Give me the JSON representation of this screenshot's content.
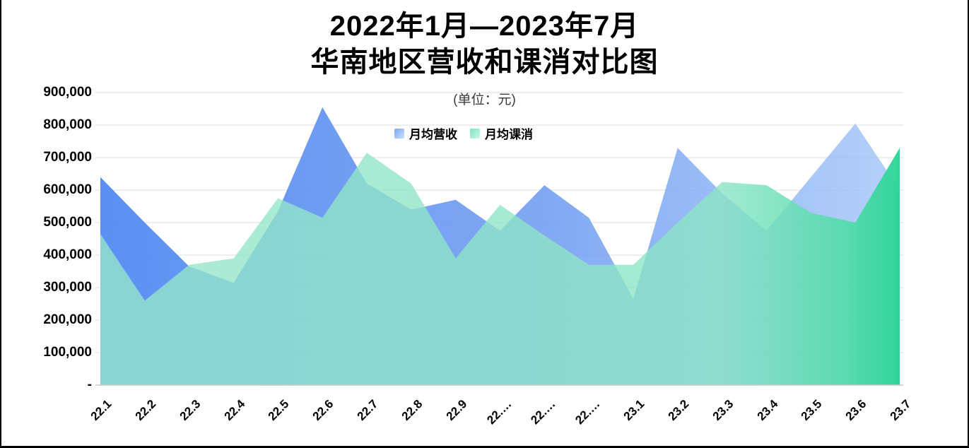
{
  "title": {
    "line1": "2022年1月—2023年7月",
    "line2": "华南地区营收和课消对比图"
  },
  "subtitle": "(单位：元)",
  "legend": [
    {
      "label": "月均营收",
      "swatch_from": "#7BA9F5",
      "swatch_to": "#CBDFFB"
    },
    {
      "label": "月均课消",
      "swatch_from": "#7DE6C2",
      "swatch_to": "#CDF5E6"
    }
  ],
  "chart_data": {
    "type": "area",
    "title": "2022年1月—2023年7月 华南地区营收和课消对比图",
    "subtitle": "(单位：元)",
    "categories": [
      "22.1",
      "22.2",
      "22.3",
      "22.4",
      "22.5",
      "22.6",
      "22.7",
      "22.8",
      "22.9",
      "22.…",
      "22.…",
      "22.…",
      "23.1",
      "23.2",
      "23.3",
      "23.4",
      "23.5",
      "23.6",
      "23.7"
    ],
    "series": [
      {
        "name": "月均营收",
        "color": "#5B8FF9",
        "values": [
          640000,
          500000,
          365000,
          315000,
          535000,
          855000,
          620000,
          540000,
          570000,
          475000,
          615000,
          515000,
          265000,
          730000,
          590000,
          475000,
          640000,
          805000,
          600000
        ],
        "fill_gradient": [
          {
            "offset": 0,
            "color": "#4D86F2",
            "opacity": 0.92
          },
          {
            "offset": 0.55,
            "color": "#6D9BF0",
            "opacity": 0.87
          },
          {
            "offset": 1,
            "color": "#A5C6F8",
            "opacity": 0.82
          }
        ]
      },
      {
        "name": "月均课消",
        "color": "#5AD8A6",
        "values": [
          465000,
          260000,
          370000,
          390000,
          575000,
          515000,
          715000,
          620000,
          390000,
          555000,
          460000,
          370000,
          370000,
          500000,
          625000,
          615000,
          530000,
          500000,
          730000
        ],
        "fill_gradient": [
          {
            "offset": 0,
            "color": "#96E6CA",
            "opacity": 0.78
          },
          {
            "offset": 0.78,
            "color": "#8AE4C5",
            "opacity": 0.8
          },
          {
            "offset": 0.93,
            "color": "#50DCA8",
            "opacity": 0.88
          },
          {
            "offset": 1,
            "color": "#28D494",
            "opacity": 0.95
          }
        ]
      }
    ],
    "y_ticks": [
      "900,000",
      "800,000",
      "700,000",
      "600,000",
      "500,000",
      "400,000",
      "300,000",
      "200,000",
      "100,000",
      "-"
    ],
    "ylim": [
      0,
      900000
    ],
    "grid": true,
    "legend_position": "top",
    "grid_color": "#dcdcdc",
    "axis_line_color": "#c9c9c9"
  }
}
